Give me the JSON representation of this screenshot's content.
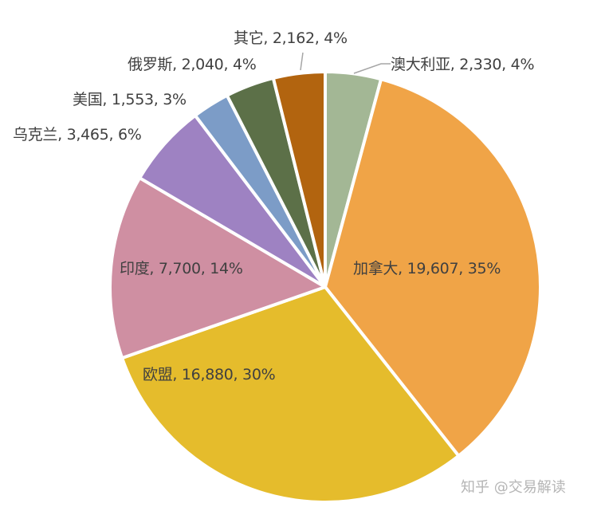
{
  "chart_data": {
    "type": "pie",
    "title": "",
    "start_angle_deg": 0,
    "direction": "clockwise",
    "categories": [
      "澳大利亚",
      "加拿大",
      "欧盟",
      "印度",
      "乌克兰",
      "美国",
      "俄罗斯",
      "其它"
    ],
    "values": [
      2330,
      19607,
      16880,
      7700,
      3465,
      1553,
      2040,
      2162
    ],
    "percents": [
      "4%",
      "35%",
      "30%",
      "14%",
      "6%",
      "3%",
      "4%",
      "4%"
    ],
    "colors": [
      "#a3b795",
      "#f0a447",
      "#e5bc2c",
      "#cf8fa2",
      "#9e82c2",
      "#7c9cc7",
      "#5c7048",
      "#b2640f"
    ],
    "labels": [
      "澳大利亚, 2,330, 4%",
      "加拿大, 19,607, 35%",
      "欧盟, 16,880, 30%",
      "印度, 7,700, 14%",
      "乌克兰, 3,465, 6%",
      "美国, 1,553, 3%",
      "俄罗斯, 2,040, 4%",
      "其它, 2,162, 4%"
    ]
  },
  "watermark": "知乎 @交易解读"
}
